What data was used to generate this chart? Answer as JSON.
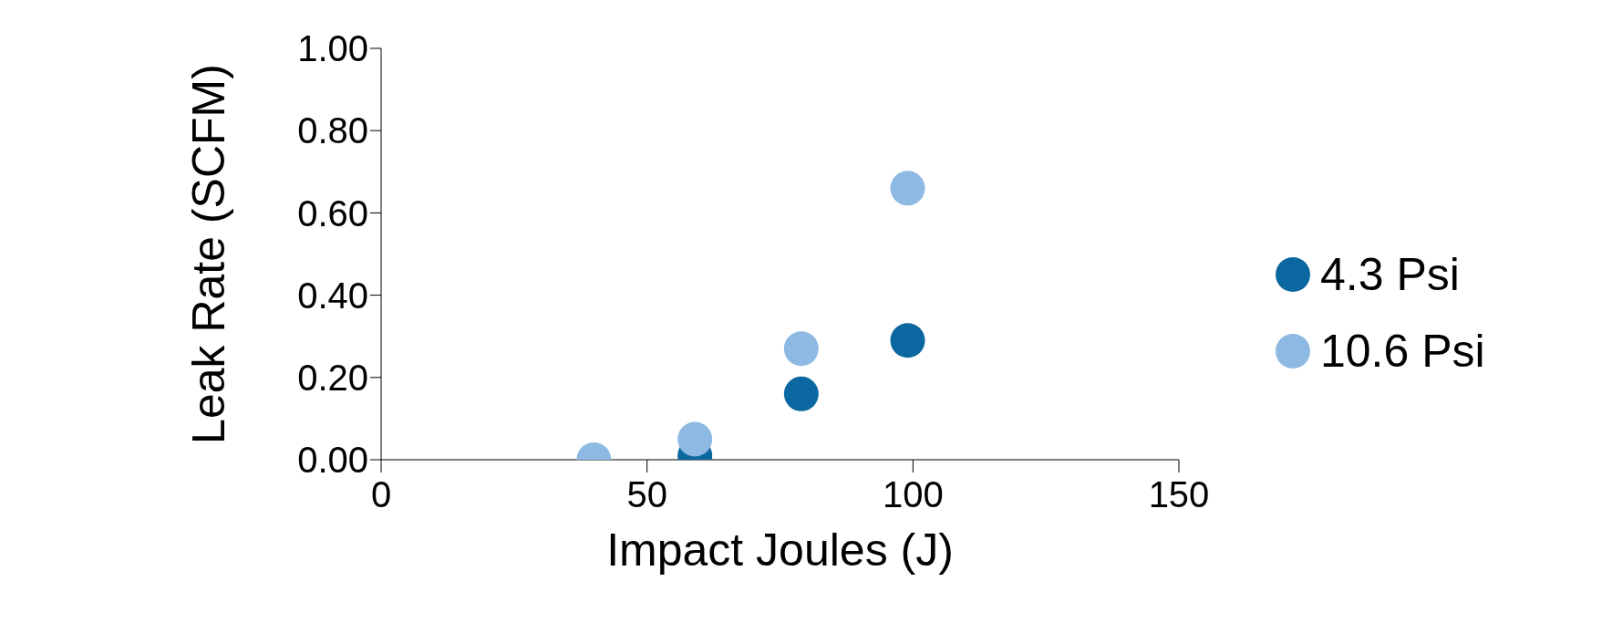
{
  "chart_data": {
    "type": "scatter",
    "xlabel": "Impact Joules (J)",
    "ylabel": "Leak Rate (SCFM)",
    "xlim": [
      0,
      150
    ],
    "xticks": [
      0,
      50,
      100,
      150
    ],
    "ylim": [
      0,
      1
    ],
    "yticks": [
      {
        "value": 0,
        "label": "0.00"
      },
      {
        "value": 0.2,
        "label": "0.20"
      },
      {
        "value": 0.4,
        "label": "0.40"
      },
      {
        "value": 0.6,
        "label": "0.60"
      },
      {
        "value": 0.8,
        "label": "0.80"
      },
      {
        "value": 1,
        "label": "1.00"
      }
    ],
    "grid": false,
    "legend": "right",
    "marker": "circle",
    "series": [
      {
        "name": "4.3 Psi",
        "color": "#0b679f",
        "x": [
          59,
          79,
          99
        ],
        "values": [
          0.01,
          0.16,
          0.29
        ]
      },
      {
        "name": "10.6 Psi",
        "color": "#8db9e2",
        "x": [
          40,
          59,
          79,
          99
        ],
        "values": [
          0,
          0.05,
          0.27,
          0.66
        ]
      }
    ]
  }
}
